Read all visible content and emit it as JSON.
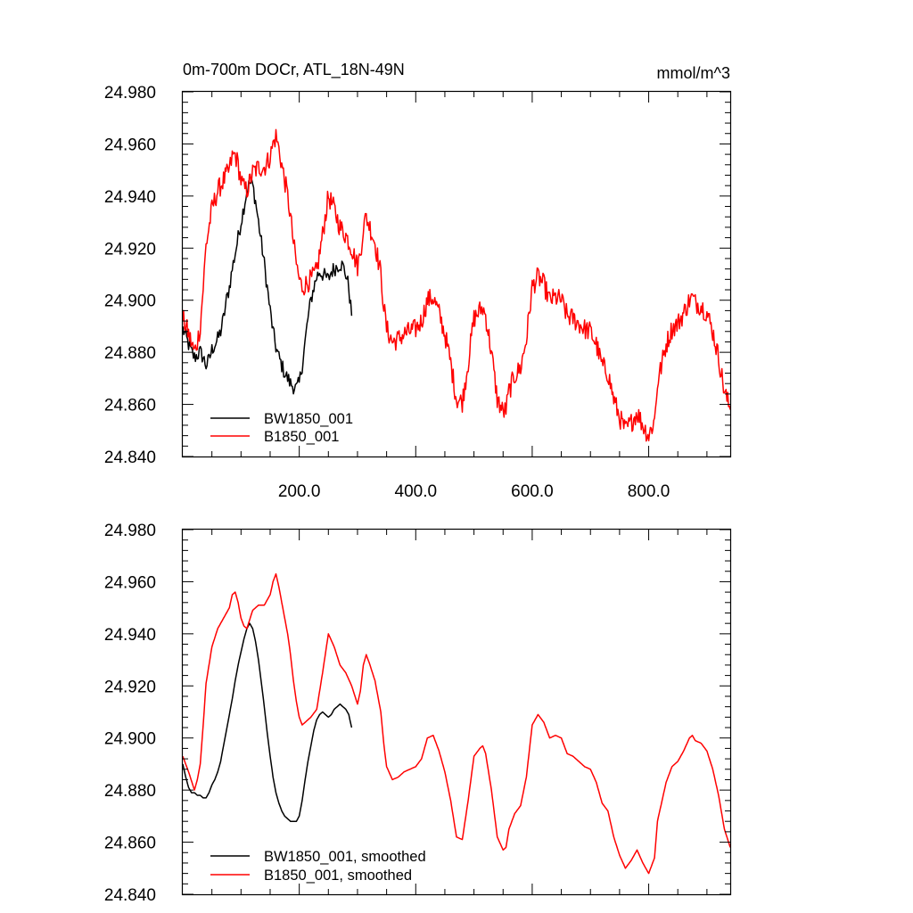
{
  "chart_data": [
    {
      "type": "line",
      "title": "0m-700m DOCr, ATL_18N-49N",
      "units": "mmol/m^3",
      "xlim": [
        0,
        940
      ],
      "ylim": [
        24.84,
        24.98
      ],
      "xticks": [
        200,
        400,
        600,
        800
      ],
      "xtick_labels": [
        "200.0",
        "400.0",
        "600.0",
        "800.0"
      ],
      "yticks": [
        24.84,
        24.86,
        24.88,
        24.9,
        24.92,
        24.94,
        24.96,
        24.98
      ],
      "ytick_labels": [
        "24.840",
        "24.860",
        "24.880",
        "24.900",
        "24.920",
        "24.940",
        "24.960",
        "24.980"
      ],
      "legend_position": "bottom-left",
      "series": [
        {
          "name": "BW1850_001",
          "color": "#000000",
          "noise": 0.003,
          "x": [
            0,
            5,
            10,
            15,
            20,
            25,
            30,
            35,
            40,
            45,
            50,
            55,
            60,
            65,
            70,
            75,
            80,
            85,
            90,
            95,
            100,
            105,
            110,
            115,
            120,
            125,
            130,
            135,
            140,
            145,
            150,
            155,
            160,
            165,
            170,
            175,
            180,
            185,
            190,
            195,
            200,
            205,
            210,
            215,
            220,
            225,
            230,
            235,
            240,
            245,
            250,
            255,
            260,
            265,
            270,
            275,
            280,
            285,
            290
          ],
          "y": [
            24.889,
            24.886,
            24.883,
            24.88,
            24.878,
            24.879,
            24.88,
            24.878,
            24.875,
            24.877,
            24.881,
            24.883,
            24.885,
            24.888,
            24.893,
            24.9,
            24.905,
            24.912,
            24.918,
            24.924,
            24.93,
            24.936,
            24.942,
            24.945,
            24.944,
            24.938,
            24.93,
            24.922,
            24.914,
            24.905,
            24.896,
            24.888,
            24.882,
            24.878,
            24.875,
            24.872,
            24.87,
            24.868,
            24.867,
            24.866,
            24.868,
            24.875,
            24.884,
            24.893,
            24.9,
            24.905,
            24.909,
            24.911,
            24.91,
            24.909,
            24.908,
            24.911,
            24.912,
            24.913,
            24.914,
            24.913,
            24.91,
            24.905,
            24.894
          ]
        },
        {
          "name": "B1850_001",
          "color": "#ff0000",
          "noise": 0.004,
          "x": [
            0,
            10,
            20,
            25,
            30,
            35,
            40,
            50,
            60,
            70,
            80,
            85,
            90,
            95,
            100,
            105,
            110,
            120,
            130,
            140,
            150,
            155,
            160,
            165,
            170,
            180,
            185,
            190,
            195,
            200,
            205,
            210,
            220,
            230,
            240,
            250,
            260,
            270,
            280,
            290,
            300,
            305,
            310,
            315,
            320,
            330,
            340,
            345,
            350,
            360,
            370,
            380,
            390,
            400,
            410,
            420,
            430,
            440,
            450,
            460,
            470,
            480,
            490,
            500,
            510,
            515,
            520,
            530,
            540,
            550,
            555,
            560,
            570,
            580,
            590,
            600,
            610,
            620,
            630,
            640,
            650,
            660,
            670,
            680,
            690,
            700,
            710,
            720,
            730,
            740,
            750,
            760,
            770,
            780,
            790,
            800,
            810,
            815,
            820,
            830,
            840,
            850,
            860,
            870,
            875,
            880,
            890,
            900,
            910,
            920,
            930,
            940
          ],
          "y": [
            24.893,
            24.887,
            24.88,
            24.884,
            24.89,
            24.905,
            24.921,
            24.935,
            24.942,
            24.946,
            24.95,
            24.955,
            24.956,
            24.952,
            24.946,
            24.943,
            24.942,
            24.949,
            24.951,
            24.951,
            24.955,
            24.96,
            24.963,
            24.958,
            24.952,
            24.94,
            24.932,
            24.922,
            24.914,
            24.908,
            24.905,
            24.906,
            24.908,
            24.911,
            24.925,
            24.94,
            24.935,
            24.928,
            24.925,
            24.92,
            24.913,
            24.918,
            24.928,
            24.932,
            24.929,
            24.922,
            24.91,
            24.898,
            24.889,
            24.884,
            24.885,
            24.887,
            24.888,
            24.889,
            24.892,
            24.9,
            24.901,
            24.895,
            24.887,
            24.876,
            24.862,
            24.861,
            24.876,
            24.893,
            24.896,
            24.897,
            24.894,
            24.88,
            24.862,
            24.857,
            24.858,
            24.865,
            24.871,
            24.874,
            24.885,
            24.905,
            24.909,
            24.906,
            24.9,
            24.901,
            24.9,
            24.894,
            24.893,
            24.891,
            24.889,
            24.888,
            24.883,
            24.875,
            24.872,
            24.862,
            24.855,
            24.85,
            24.853,
            24.857,
            24.852,
            24.848,
            24.854,
            24.868,
            24.873,
            24.883,
            24.889,
            24.891,
            24.895,
            24.9,
            24.901,
            24.899,
            24.898,
            24.895,
            24.888,
            24.878,
            24.865,
            24.858
          ]
        }
      ]
    },
    {
      "type": "line",
      "xlim": [
        0,
        940
      ],
      "ylim": [
        24.84,
        24.98
      ],
      "xticks": [
        200,
        400,
        600,
        800
      ],
      "yticks": [
        24.84,
        24.86,
        24.88,
        24.9,
        24.92,
        24.94,
        24.96,
        24.98
      ],
      "ytick_labels": [
        "24.840",
        "24.860",
        "24.880",
        "24.900",
        "24.920",
        "24.940",
        "24.960",
        "24.980"
      ],
      "legend_position": "bottom-left",
      "series": [
        {
          "name": "BW1850_001, smoothed",
          "color": "#000000",
          "noise": 0,
          "x": [
            0,
            5,
            10,
            15,
            20,
            25,
            30,
            35,
            40,
            45,
            50,
            55,
            60,
            65,
            70,
            75,
            80,
            85,
            90,
            95,
            100,
            105,
            110,
            115,
            120,
            125,
            130,
            135,
            140,
            145,
            150,
            155,
            160,
            165,
            170,
            175,
            180,
            185,
            190,
            195,
            200,
            205,
            210,
            215,
            220,
            225,
            230,
            235,
            240,
            245,
            250,
            255,
            260,
            265,
            270,
            275,
            280,
            285,
            290
          ],
          "y": [
            24.89,
            24.885,
            24.881,
            24.879,
            24.879,
            24.878,
            24.878,
            24.877,
            24.877,
            24.879,
            24.882,
            24.884,
            24.887,
            24.891,
            24.897,
            24.903,
            24.909,
            24.915,
            24.922,
            24.928,
            24.933,
            24.938,
            24.942,
            24.944,
            24.942,
            24.937,
            24.93,
            24.921,
            24.912,
            24.902,
            24.893,
            24.885,
            24.879,
            24.875,
            24.872,
            24.87,
            24.869,
            24.868,
            24.868,
            24.868,
            24.87,
            24.876,
            24.884,
            24.891,
            24.897,
            24.903,
            24.907,
            24.909,
            24.91,
            24.909,
            24.908,
            24.909,
            24.911,
            24.912,
            24.913,
            24.912,
            24.911,
            24.909,
            24.904
          ]
        },
        {
          "name": "B1850_001, smoothed",
          "color": "#ff0000",
          "noise": 0,
          "x": [
            0,
            10,
            20,
            25,
            30,
            35,
            40,
            50,
            60,
            70,
            80,
            85,
            90,
            95,
            100,
            105,
            110,
            120,
            130,
            140,
            150,
            155,
            160,
            165,
            170,
            180,
            185,
            190,
            195,
            200,
            205,
            210,
            220,
            230,
            240,
            250,
            260,
            270,
            280,
            290,
            300,
            305,
            310,
            315,
            320,
            330,
            340,
            345,
            350,
            360,
            370,
            380,
            390,
            400,
            410,
            420,
            430,
            440,
            450,
            460,
            470,
            480,
            490,
            500,
            510,
            515,
            520,
            530,
            540,
            550,
            555,
            560,
            570,
            580,
            590,
            600,
            610,
            620,
            630,
            640,
            650,
            660,
            670,
            680,
            690,
            700,
            710,
            720,
            730,
            740,
            750,
            760,
            770,
            780,
            790,
            800,
            810,
            815,
            820,
            830,
            840,
            850,
            860,
            870,
            875,
            880,
            890,
            900,
            910,
            920,
            930,
            940
          ],
          "y": [
            24.893,
            24.887,
            24.88,
            24.884,
            24.89,
            24.905,
            24.921,
            24.935,
            24.942,
            24.946,
            24.95,
            24.955,
            24.956,
            24.952,
            24.946,
            24.943,
            24.942,
            24.949,
            24.951,
            24.951,
            24.955,
            24.96,
            24.963,
            24.958,
            24.952,
            24.94,
            24.932,
            24.922,
            24.914,
            24.908,
            24.905,
            24.906,
            24.908,
            24.911,
            24.925,
            24.94,
            24.935,
            24.928,
            24.925,
            24.92,
            24.913,
            24.918,
            24.928,
            24.932,
            24.929,
            24.922,
            24.91,
            24.898,
            24.889,
            24.884,
            24.885,
            24.887,
            24.888,
            24.889,
            24.892,
            24.9,
            24.901,
            24.895,
            24.887,
            24.876,
            24.862,
            24.861,
            24.876,
            24.893,
            24.896,
            24.897,
            24.894,
            24.88,
            24.862,
            24.857,
            24.858,
            24.865,
            24.871,
            24.874,
            24.885,
            24.905,
            24.909,
            24.906,
            24.9,
            24.901,
            24.9,
            24.894,
            24.893,
            24.891,
            24.889,
            24.888,
            24.883,
            24.875,
            24.872,
            24.862,
            24.855,
            24.85,
            24.853,
            24.857,
            24.852,
            24.848,
            24.854,
            24.868,
            24.873,
            24.883,
            24.889,
            24.891,
            24.895,
            24.9,
            24.901,
            24.899,
            24.898,
            24.895,
            24.888,
            24.878,
            24.865,
            24.858
          ]
        }
      ]
    }
  ]
}
